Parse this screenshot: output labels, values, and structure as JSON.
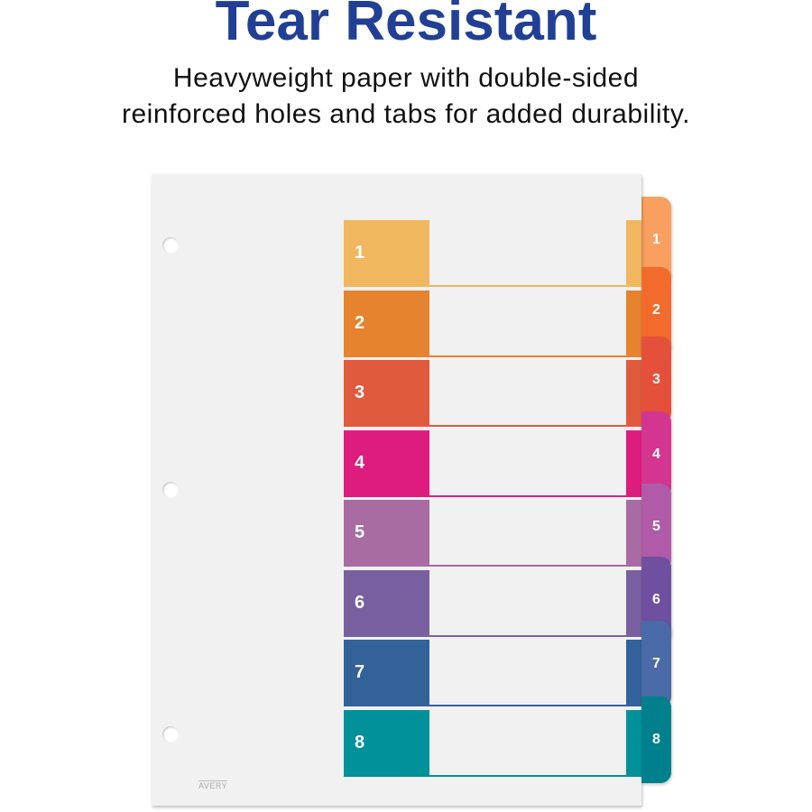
{
  "headline": "Tear Resistant",
  "subtitle_lines": [
    "Heavyweight paper with double-sided",
    "reinforced holes and tabs for added durability."
  ],
  "brand_logo": "AVERY",
  "tabs": [
    {
      "label": "1",
      "color": "#f0b75e",
      "tab_color": "#f9a060"
    },
    {
      "label": "2",
      "color": "#e5832e",
      "tab_color": "#f26b2c"
    },
    {
      "label": "3",
      "color": "#e05a3e",
      "tab_color": "#e5503a"
    },
    {
      "label": "4",
      "color": "#de1c7d",
      "tab_color": "#d43591"
    },
    {
      "label": "5",
      "color": "#a86ba2",
      "tab_color": "#b05aa8"
    },
    {
      "label": "6",
      "color": "#7860a0",
      "tab_color": "#6e4fa0"
    },
    {
      "label": "7",
      "color": "#336199",
      "tab_color": "#4a6aa8"
    },
    {
      "label": "8",
      "color": "#00919a",
      "tab_color": "#00808c"
    }
  ]
}
